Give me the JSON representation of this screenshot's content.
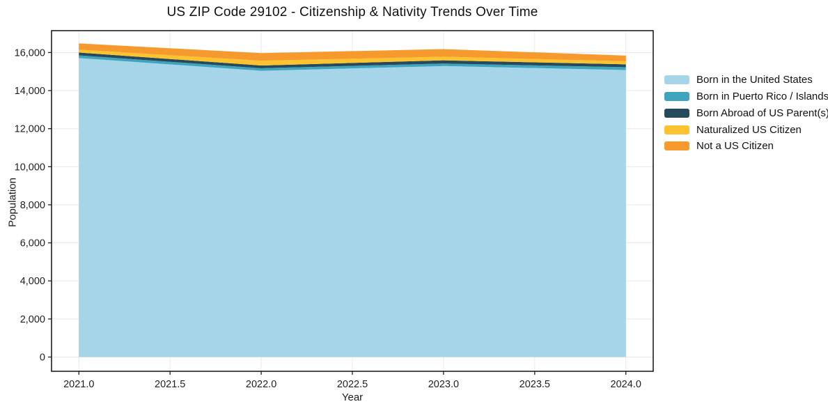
{
  "chart_data": {
    "type": "area",
    "stacked": true,
    "title": "US ZIP Code 29102 - Citizenship & Nativity Trends Over Time",
    "xlabel": "Year",
    "ylabel": "Population",
    "x": [
      2021,
      2022,
      2023,
      2024
    ],
    "series": [
      {
        "name": "Born in the United States",
        "color": "#a6d5e9",
        "values": [
          15710,
          15040,
          15290,
          15080
        ]
      },
      {
        "name": "Born in Puerto Rico / Islands",
        "color": "#3da5be",
        "values": [
          140,
          135,
          130,
          150
        ]
      },
      {
        "name": "Born Abroad of US Parent(s)",
        "color": "#26495c",
        "values": [
          150,
          145,
          170,
          150
        ]
      },
      {
        "name": "Naturalized US Citizen",
        "color": "#fcc330",
        "values": [
          150,
          250,
          190,
          160
        ]
      },
      {
        "name": "Not a US Citizen",
        "color": "#f79a2e",
        "values": [
          330,
          400,
          400,
          300
        ]
      }
    ],
    "totals": [
      16480,
      15970,
      16180,
      15840
    ],
    "xticks": [
      2021.0,
      2021.5,
      2022.0,
      2022.5,
      2023.0,
      2023.5,
      2024.0
    ],
    "xtick_labels": [
      "2021.0",
      "2021.5",
      "2022.0",
      "2022.5",
      "2023.0",
      "2023.5",
      "2024.0"
    ],
    "yticks": [
      0,
      2000,
      4000,
      6000,
      8000,
      10000,
      12000,
      14000,
      16000
    ],
    "ytick_labels": [
      "0",
      "2,000",
      "4,000",
      "6,000",
      "8,000",
      "10,000",
      "12,000",
      "14,000",
      "16,000"
    ],
    "xlim": [
      2020.85,
      2024.15
    ],
    "ylim": [
      -750,
      17150
    ],
    "grid": true,
    "grid_color": "#e8e8e8",
    "axis_color": "#1f1f1f",
    "legend_position": "right-outside"
  }
}
